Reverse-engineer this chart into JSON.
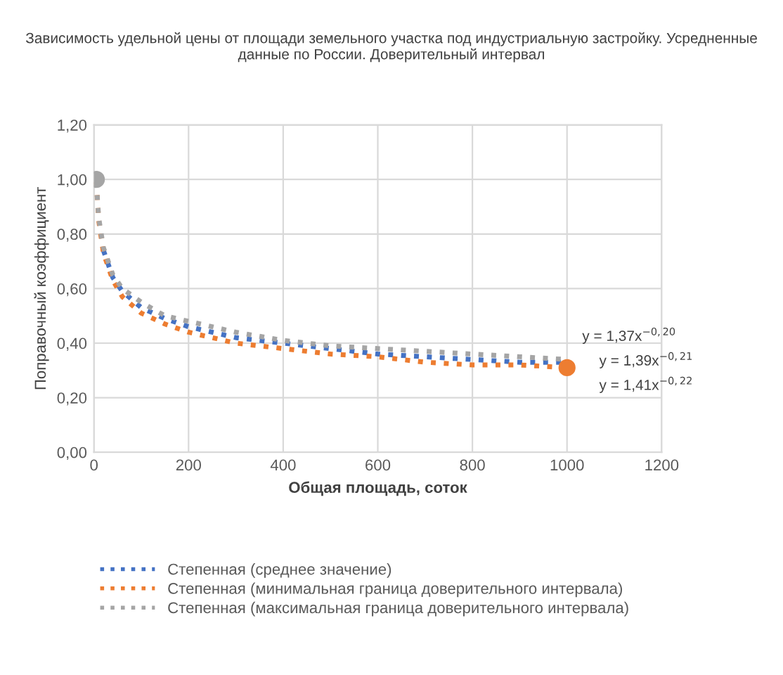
{
  "chart_data": {
    "type": "line",
    "title": "Зависимость удельной цены от площади земельного участка под индустриальную застройку. Усредненные данные по России. Доверительный интервал",
    "xlabel": "Общая площадь, соток",
    "ylabel": "Поправочный коэффициент",
    "x": [
      5,
      10,
      20,
      40,
      60,
      100,
      150,
      200,
      300,
      400,
      500,
      600,
      700,
      800,
      900,
      1000
    ],
    "series": [
      {
        "name": "Степенная (среднее значение)",
        "color": "#4472c4",
        "values": [
          null,
          null,
          0.74,
          0.64,
          0.59,
          0.53,
          0.49,
          0.46,
          0.42,
          0.4,
          0.38,
          0.36,
          0.35,
          0.34,
          0.33,
          0.33
        ]
      },
      {
        "name": "Степенная (минимальная граница доверительного интервала)",
        "color": "#ed7d31",
        "values": [
          0.99,
          0.85,
          0.73,
          0.63,
          0.57,
          0.51,
          0.47,
          0.44,
          0.4,
          0.38,
          0.36,
          0.35,
          0.33,
          0.32,
          0.32,
          0.31
        ]
      },
      {
        "name": "Степенная (максимальная граница доверительного интервала)",
        "color": "#a5a5a5",
        "values": [
          0.99,
          0.86,
          0.75,
          0.65,
          0.6,
          0.55,
          0.5,
          0.48,
          0.44,
          0.41,
          0.39,
          0.38,
          0.37,
          0.36,
          0.35,
          0.34
        ]
      },
      {
        "type": "scatter",
        "marker": "circle",
        "color": "#a5a5a5",
        "x": [
          5
        ],
        "values": [
          1.0
        ]
      },
      {
        "type": "scatter",
        "marker": "circle",
        "color": "#ed7d31",
        "x": [
          1000
        ],
        "values": [
          0.31
        ]
      }
    ],
    "annotations": [
      "y = 1,37x$^{−0,20}$",
      "y = 1,39x$^{−0,21}$",
      "y = 1,41x$^{−0,22}$"
    ],
    "xlim": [
      0,
      1200
    ],
    "xticks": [
      0,
      200,
      400,
      600,
      800,
      1000,
      1200
    ],
    "ylim": [
      0,
      1.2
    ],
    "yticks": [
      {
        "value": 0,
        "label": "0,00"
      },
      {
        "value": 0.2,
        "label": "0,20"
      },
      {
        "value": 0.4,
        "label": "0,40"
      },
      {
        "value": 0.6,
        "label": "0,60"
      },
      {
        "value": 0.8,
        "label": "0,80"
      },
      {
        "value": 1.0,
        "label": "1,00"
      },
      {
        "value": 1.2,
        "label": "1,20"
      }
    ],
    "grid": true,
    "legend": "bottom",
    "line_style": "dotted",
    "marker": "none"
  }
}
